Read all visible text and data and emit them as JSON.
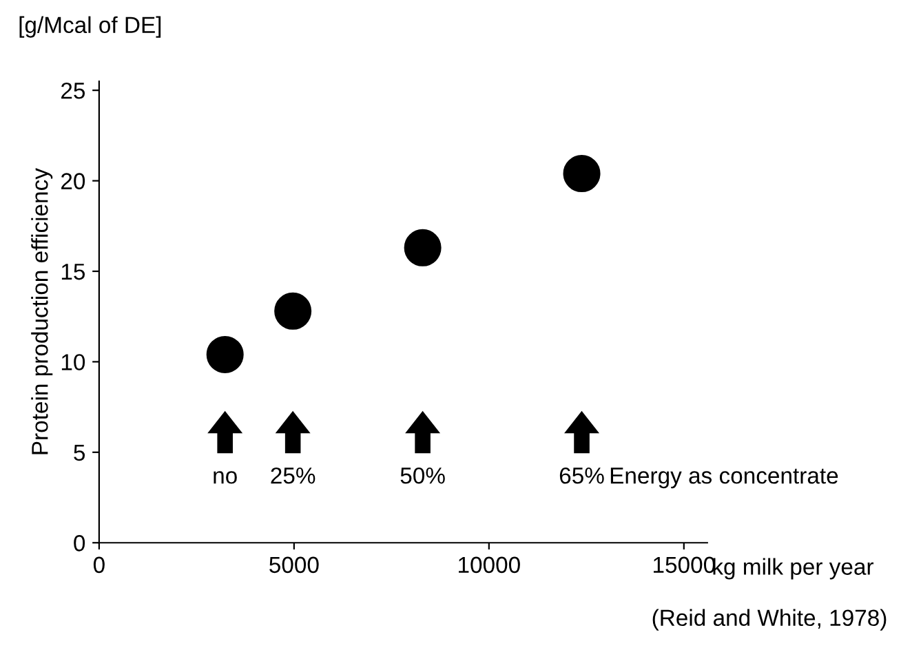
{
  "chart_data": {
    "type": "scatter",
    "title": "[g/Mcal of DE]",
    "ylabel": "Protein production efficiency",
    "xlabel": "kg milk per year",
    "x": [
      3230,
      4970,
      8300,
      12380
    ],
    "values": [
      10.4,
      12.8,
      16.3,
      20.4
    ],
    "color": "#000000",
    "marker": "circle",
    "xlim": [
      0,
      15600
    ],
    "xticks": [
      0,
      5000,
      10000,
      15000
    ],
    "ylim": [
      0,
      25.5
    ],
    "yticks": [
      0,
      5,
      10,
      15,
      20,
      25
    ],
    "grid": false,
    "legend": false,
    "annotations": [
      "no",
      "25%",
      "50%",
      "65%",
      "Energy as concentrate",
      "(Reid and White, 1978)"
    ]
  }
}
